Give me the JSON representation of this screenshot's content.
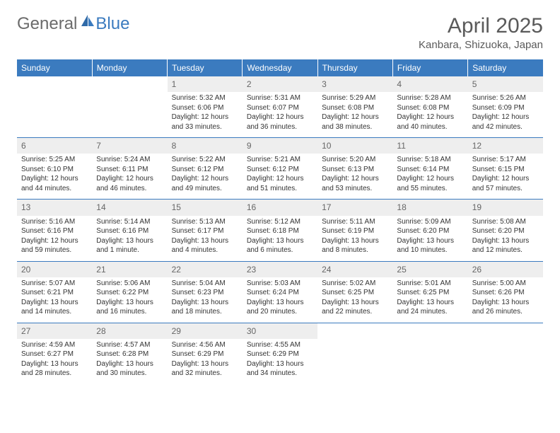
{
  "logo": {
    "text1": "General",
    "text2": "Blue"
  },
  "title": "April 2025",
  "location": "Kanbara, Shizuoka, Japan",
  "colors": {
    "header_bg": "#3b7bbf",
    "header_text": "#ffffff",
    "daynum_bg": "#eeeeee",
    "daynum_text": "#666666",
    "row_border": "#3b7bbf",
    "body_text": "#333333",
    "page_bg": "#ffffff",
    "logo_gray": "#6b6b6b",
    "logo_blue": "#3b7bbf",
    "title_color": "#5a5a5a"
  },
  "weekdays": [
    "Sunday",
    "Monday",
    "Tuesday",
    "Wednesday",
    "Thursday",
    "Friday",
    "Saturday"
  ],
  "weeks": [
    [
      null,
      null,
      {
        "n": "1",
        "sr": "Sunrise: 5:32 AM",
        "ss": "Sunset: 6:06 PM",
        "d1": "Daylight: 12 hours",
        "d2": "and 33 minutes."
      },
      {
        "n": "2",
        "sr": "Sunrise: 5:31 AM",
        "ss": "Sunset: 6:07 PM",
        "d1": "Daylight: 12 hours",
        "d2": "and 36 minutes."
      },
      {
        "n": "3",
        "sr": "Sunrise: 5:29 AM",
        "ss": "Sunset: 6:08 PM",
        "d1": "Daylight: 12 hours",
        "d2": "and 38 minutes."
      },
      {
        "n": "4",
        "sr": "Sunrise: 5:28 AM",
        "ss": "Sunset: 6:08 PM",
        "d1": "Daylight: 12 hours",
        "d2": "and 40 minutes."
      },
      {
        "n": "5",
        "sr": "Sunrise: 5:26 AM",
        "ss": "Sunset: 6:09 PM",
        "d1": "Daylight: 12 hours",
        "d2": "and 42 minutes."
      }
    ],
    [
      {
        "n": "6",
        "sr": "Sunrise: 5:25 AM",
        "ss": "Sunset: 6:10 PM",
        "d1": "Daylight: 12 hours",
        "d2": "and 44 minutes."
      },
      {
        "n": "7",
        "sr": "Sunrise: 5:24 AM",
        "ss": "Sunset: 6:11 PM",
        "d1": "Daylight: 12 hours",
        "d2": "and 46 minutes."
      },
      {
        "n": "8",
        "sr": "Sunrise: 5:22 AM",
        "ss": "Sunset: 6:12 PM",
        "d1": "Daylight: 12 hours",
        "d2": "and 49 minutes."
      },
      {
        "n": "9",
        "sr": "Sunrise: 5:21 AM",
        "ss": "Sunset: 6:12 PM",
        "d1": "Daylight: 12 hours",
        "d2": "and 51 minutes."
      },
      {
        "n": "10",
        "sr": "Sunrise: 5:20 AM",
        "ss": "Sunset: 6:13 PM",
        "d1": "Daylight: 12 hours",
        "d2": "and 53 minutes."
      },
      {
        "n": "11",
        "sr": "Sunrise: 5:18 AM",
        "ss": "Sunset: 6:14 PM",
        "d1": "Daylight: 12 hours",
        "d2": "and 55 minutes."
      },
      {
        "n": "12",
        "sr": "Sunrise: 5:17 AM",
        "ss": "Sunset: 6:15 PM",
        "d1": "Daylight: 12 hours",
        "d2": "and 57 minutes."
      }
    ],
    [
      {
        "n": "13",
        "sr": "Sunrise: 5:16 AM",
        "ss": "Sunset: 6:16 PM",
        "d1": "Daylight: 12 hours",
        "d2": "and 59 minutes."
      },
      {
        "n": "14",
        "sr": "Sunrise: 5:14 AM",
        "ss": "Sunset: 6:16 PM",
        "d1": "Daylight: 13 hours",
        "d2": "and 1 minute."
      },
      {
        "n": "15",
        "sr": "Sunrise: 5:13 AM",
        "ss": "Sunset: 6:17 PM",
        "d1": "Daylight: 13 hours",
        "d2": "and 4 minutes."
      },
      {
        "n": "16",
        "sr": "Sunrise: 5:12 AM",
        "ss": "Sunset: 6:18 PM",
        "d1": "Daylight: 13 hours",
        "d2": "and 6 minutes."
      },
      {
        "n": "17",
        "sr": "Sunrise: 5:11 AM",
        "ss": "Sunset: 6:19 PM",
        "d1": "Daylight: 13 hours",
        "d2": "and 8 minutes."
      },
      {
        "n": "18",
        "sr": "Sunrise: 5:09 AM",
        "ss": "Sunset: 6:20 PM",
        "d1": "Daylight: 13 hours",
        "d2": "and 10 minutes."
      },
      {
        "n": "19",
        "sr": "Sunrise: 5:08 AM",
        "ss": "Sunset: 6:20 PM",
        "d1": "Daylight: 13 hours",
        "d2": "and 12 minutes."
      }
    ],
    [
      {
        "n": "20",
        "sr": "Sunrise: 5:07 AM",
        "ss": "Sunset: 6:21 PM",
        "d1": "Daylight: 13 hours",
        "d2": "and 14 minutes."
      },
      {
        "n": "21",
        "sr": "Sunrise: 5:06 AM",
        "ss": "Sunset: 6:22 PM",
        "d1": "Daylight: 13 hours",
        "d2": "and 16 minutes."
      },
      {
        "n": "22",
        "sr": "Sunrise: 5:04 AM",
        "ss": "Sunset: 6:23 PM",
        "d1": "Daylight: 13 hours",
        "d2": "and 18 minutes."
      },
      {
        "n": "23",
        "sr": "Sunrise: 5:03 AM",
        "ss": "Sunset: 6:24 PM",
        "d1": "Daylight: 13 hours",
        "d2": "and 20 minutes."
      },
      {
        "n": "24",
        "sr": "Sunrise: 5:02 AM",
        "ss": "Sunset: 6:25 PM",
        "d1": "Daylight: 13 hours",
        "d2": "and 22 minutes."
      },
      {
        "n": "25",
        "sr": "Sunrise: 5:01 AM",
        "ss": "Sunset: 6:25 PM",
        "d1": "Daylight: 13 hours",
        "d2": "and 24 minutes."
      },
      {
        "n": "26",
        "sr": "Sunrise: 5:00 AM",
        "ss": "Sunset: 6:26 PM",
        "d1": "Daylight: 13 hours",
        "d2": "and 26 minutes."
      }
    ],
    [
      {
        "n": "27",
        "sr": "Sunrise: 4:59 AM",
        "ss": "Sunset: 6:27 PM",
        "d1": "Daylight: 13 hours",
        "d2": "and 28 minutes."
      },
      {
        "n": "28",
        "sr": "Sunrise: 4:57 AM",
        "ss": "Sunset: 6:28 PM",
        "d1": "Daylight: 13 hours",
        "d2": "and 30 minutes."
      },
      {
        "n": "29",
        "sr": "Sunrise: 4:56 AM",
        "ss": "Sunset: 6:29 PM",
        "d1": "Daylight: 13 hours",
        "d2": "and 32 minutes."
      },
      {
        "n": "30",
        "sr": "Sunrise: 4:55 AM",
        "ss": "Sunset: 6:29 PM",
        "d1": "Daylight: 13 hours",
        "d2": "and 34 minutes."
      },
      null,
      null,
      null
    ]
  ]
}
